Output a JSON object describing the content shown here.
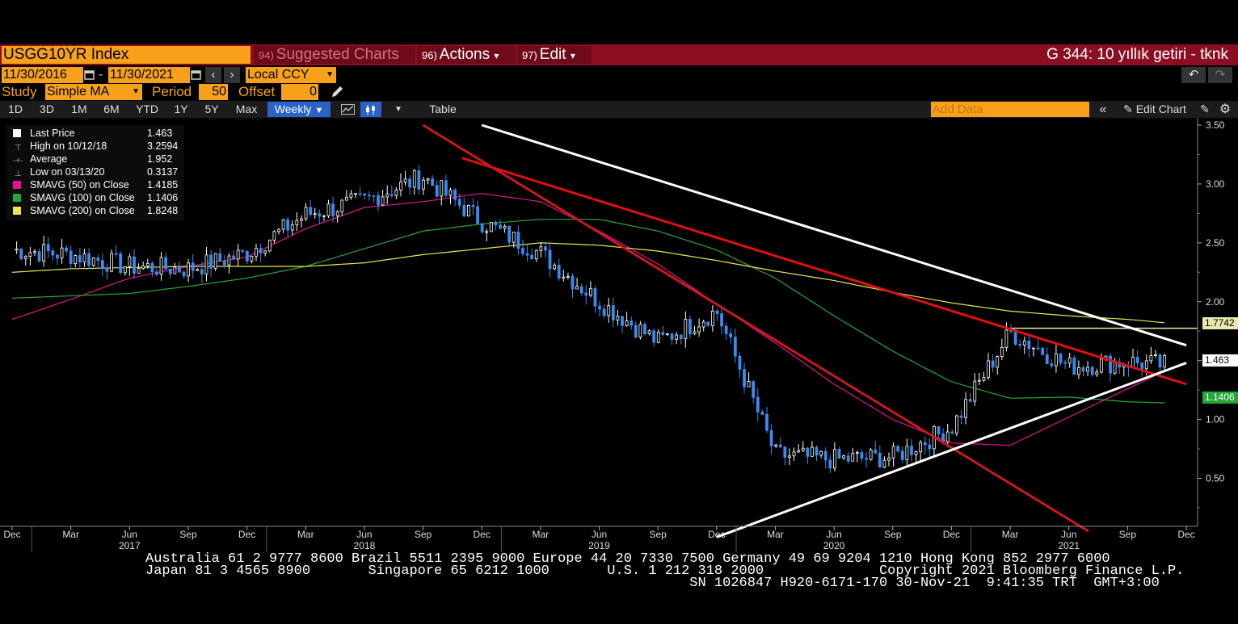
{
  "header": {
    "ticker": "USGG10YR Index",
    "menu": [
      {
        "num": "94)",
        "label": "Suggested Charts"
      },
      {
        "num": "96)",
        "label": "Actions",
        "caret": "▾"
      },
      {
        "num": "97)",
        "label": "Edit",
        "caret": "▾"
      }
    ],
    "title": "G 344: 10 yıllık getiri - tknk"
  },
  "dates": {
    "start": "11/30/2016",
    "sep": "-",
    "end": "11/30/2021",
    "currency": "Local CCY"
  },
  "study": {
    "label": "Study",
    "value": "Simple MA",
    "period_label": "Period",
    "period": "50",
    "offset_label": "Offset",
    "offset": "0"
  },
  "toolbar": {
    "ranges": [
      "1D",
      "3D",
      "1M",
      "6M",
      "YTD",
      "1Y",
      "5Y",
      "Max"
    ],
    "interval": "Weekly",
    "table_label": "Table",
    "add_data_placeholder": "Add Data",
    "edit_chart_label": "Edit Chart"
  },
  "legend": [
    {
      "name": "Last Price",
      "value": "1.463",
      "color": "#ffffff"
    },
    {
      "name": "High on 10/12/18",
      "value": "3.2594",
      "color": ""
    },
    {
      "name": "Average",
      "value": "1.952",
      "color": ""
    },
    {
      "name": "Low on 03/13/20",
      "value": "0.3137",
      "color": ""
    },
    {
      "name": "SMAVG (50)  on Close",
      "value": "1.4185",
      "color": "#e0148c"
    },
    {
      "name": "SMAVG (100)  on Close",
      "value": "1.1406",
      "color": "#22a83a"
    },
    {
      "name": "SMAVG (200)  on Close",
      "value": "1.8248",
      "color": "#e8e84a"
    }
  ],
  "price_tags": {
    "hline": "1.7742",
    "last": "1.463",
    "ma100": "1.1406"
  },
  "chart_data": {
    "type": "line",
    "title": "USGG10YR Index",
    "y_ticks": [
      3.5,
      3.0,
      2.5,
      2.0,
      1.5,
      1.0,
      0.5
    ],
    "ylim": [
      0.0,
      3.55
    ],
    "x_month_ticks": [
      "Dec",
      "Mar",
      "Jun",
      "Sep",
      "Dec",
      "Mar",
      "Jun",
      "Sep",
      "Dec",
      "Mar",
      "Jun",
      "Sep",
      "Dec",
      "Mar",
      "Jun",
      "Sep",
      "Dec",
      "Mar",
      "Jun",
      "Sep",
      "Dec"
    ],
    "x_year_ticks": [
      "2017",
      "2018",
      "2019",
      "2020",
      "2021"
    ],
    "x": [
      "2016-12",
      "2017-03",
      "2017-06",
      "2017-09",
      "2017-12",
      "2018-03",
      "2018-06",
      "2018-09",
      "2018-12",
      "2019-03",
      "2019-06",
      "2019-09",
      "2019-12",
      "2020-03",
      "2020-06",
      "2020-09",
      "2020-12",
      "2021-03",
      "2021-06",
      "2021-09",
      "2021-11"
    ],
    "series": [
      {
        "name": "Last Price",
        "color": "#3a8bf0",
        "values": [
          2.44,
          2.4,
          2.3,
          2.28,
          2.41,
          2.74,
          2.86,
          3.06,
          2.68,
          2.41,
          2.0,
          1.66,
          1.92,
          0.7,
          0.66,
          0.68,
          0.93,
          1.74,
          1.45,
          1.49,
          1.46
        ]
      },
      {
        "name": "SMAVG (50)  on Close",
        "color": "#e0148c",
        "values": [
          1.85,
          2.02,
          2.2,
          2.3,
          2.38,
          2.62,
          2.8,
          2.85,
          2.92,
          2.85,
          2.6,
          2.32,
          1.98,
          1.65,
          1.3,
          1.0,
          0.8,
          0.78,
          1.02,
          1.26,
          1.42
        ]
      },
      {
        "name": "SMAVG (100)  on Close",
        "color": "#22a83a",
        "values": [
          2.03,
          2.05,
          2.07,
          2.13,
          2.2,
          2.3,
          2.45,
          2.6,
          2.66,
          2.7,
          2.7,
          2.6,
          2.44,
          2.2,
          1.88,
          1.58,
          1.32,
          1.18,
          1.19,
          1.15,
          1.14
        ]
      },
      {
        "name": "SMAVG (200)  on Close",
        "color": "#e8e84a",
        "values": [
          2.25,
          2.28,
          2.29,
          2.3,
          2.3,
          2.3,
          2.33,
          2.4,
          2.45,
          2.5,
          2.48,
          2.43,
          2.35,
          2.26,
          2.18,
          2.08,
          1.99,
          1.92,
          1.88,
          1.85,
          1.82
        ]
      }
    ],
    "hline": 1.7742,
    "trendlines": [
      {
        "color": "#ffffff",
        "from": [
          "2018-12",
          3.5
        ],
        "to": [
          "2021-12",
          1.63
        ]
      },
      {
        "color": "#e01010",
        "from": [
          "2018-11",
          3.22
        ],
        "to": [
          "2021-12",
          1.3
        ]
      },
      {
        "color": "#c81a1a",
        "from": [
          "2018-09",
          3.5
        ],
        "to": [
          "2021-07",
          0.05
        ]
      },
      {
        "color": "#ffffff",
        "from": [
          "2019-12",
          0.0
        ],
        "to": [
          "2021-12",
          1.48
        ]
      }
    ]
  },
  "footer": {
    "line1": "Australia 61 2 9777 8600 Brazil 5511 2395 9000 Europe 44 20 7330 7500 Germany 49 69 9204 1210 Hong Kong 852 2977 6000",
    "line2": "Japan 81 3 4565 8900       Singapore 65 6212 1000       U.S. 1 212 318 2000              Copyright 2021 Bloomberg Finance L.P.",
    "line3": "                                                                  SN 1026847 H920-6171-170 30-Nov-21  9:41:35 TRT  GMT+3:00"
  }
}
